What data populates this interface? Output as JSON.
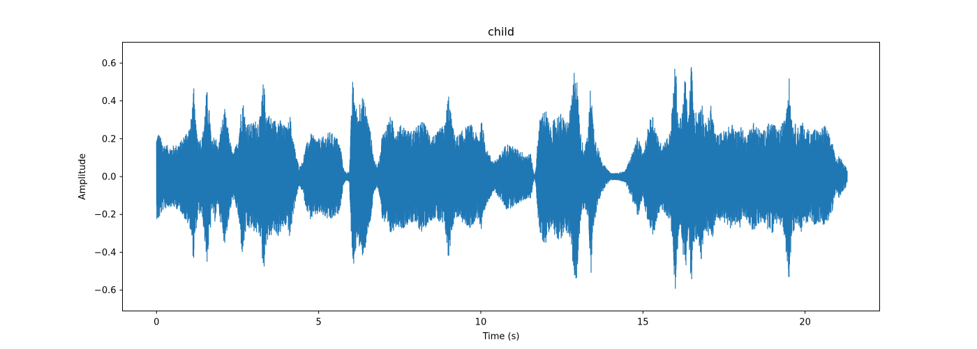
{
  "chart_data": {
    "type": "line",
    "title": "child",
    "xlabel": "Time (s)",
    "ylabel": "Amplitude",
    "xlim": [
      -1.05,
      22.3
    ],
    "ylim": [
      -0.71,
      0.71
    ],
    "xticks": [
      0,
      5,
      10,
      15,
      20
    ],
    "yticks": [
      -0.6,
      -0.4,
      -0.2,
      0.0,
      0.2,
      0.4,
      0.6
    ],
    "grid": false,
    "series": [
      {
        "color": "#1f77b4",
        "duration_s": 21.3,
        "envelope": {
          "time": [
            0.0,
            0.05,
            0.2,
            0.4,
            0.6,
            0.75,
            0.8,
            0.9,
            1.05,
            1.15,
            1.2,
            1.3,
            1.42,
            1.55,
            1.65,
            1.7,
            1.8,
            1.9,
            2.0,
            2.1,
            2.2,
            2.35,
            2.5,
            2.65,
            2.75,
            2.9,
            3.05,
            3.2,
            3.3,
            3.38,
            3.45,
            3.6,
            3.75,
            3.9,
            4.05,
            4.1,
            4.2,
            4.3,
            4.4,
            4.5,
            4.6,
            4.75,
            4.9,
            5.05,
            5.2,
            5.35,
            5.5,
            5.6,
            5.7,
            5.75,
            5.85,
            5.95,
            6.0,
            6.05,
            6.2,
            6.3,
            6.45,
            6.55,
            6.6,
            6.7,
            6.8,
            6.9,
            6.95,
            7.05,
            7.2,
            7.4,
            7.6,
            7.8,
            8.0,
            8.2,
            8.4,
            8.6,
            8.75,
            8.9,
            9.0,
            9.1,
            9.2,
            9.3,
            9.5,
            9.7,
            9.8,
            9.95,
            10.0,
            10.1,
            10.2,
            10.4,
            10.6,
            10.8,
            11.0,
            11.2,
            11.4,
            11.55,
            11.6,
            11.65,
            11.7,
            11.75,
            11.85,
            12.0,
            12.15,
            12.3,
            12.45,
            12.6,
            12.7,
            12.8,
            12.9,
            12.95,
            13.05,
            13.1,
            13.2,
            13.3,
            13.4,
            13.45,
            13.55,
            13.7,
            13.85,
            14.0,
            14.2,
            14.45,
            14.7,
            14.85,
            15.0,
            15.1,
            15.2,
            15.3,
            15.45,
            15.55,
            15.7,
            15.85,
            16.0,
            16.1,
            16.2,
            16.3,
            16.4,
            16.5,
            16.55,
            16.7,
            16.8,
            16.9,
            17.0,
            17.1,
            17.25,
            17.45,
            17.6,
            17.75,
            17.9,
            18.0,
            18.15,
            18.25,
            18.4,
            18.55,
            18.7,
            18.85,
            19.0,
            19.15,
            19.35,
            19.5,
            19.6,
            19.7,
            19.8,
            19.9,
            20.0,
            20.1,
            20.2,
            20.3,
            20.45,
            20.6,
            20.75,
            20.85,
            20.95,
            21.05,
            21.15,
            21.25,
            21.3
          ],
          "amplitude": [
            0.22,
            0.24,
            0.18,
            0.16,
            0.17,
            0.19,
            0.2,
            0.24,
            0.28,
            0.47,
            0.3,
            0.2,
            0.22,
            0.47,
            0.32,
            0.18,
            0.24,
            0.15,
            0.28,
            0.36,
            0.26,
            0.12,
            0.19,
            0.43,
            0.3,
            0.28,
            0.3,
            0.32,
            0.52,
            0.36,
            0.34,
            0.3,
            0.32,
            0.28,
            0.26,
            0.35,
            0.22,
            0.12,
            0.05,
            0.08,
            0.16,
            0.23,
            0.21,
            0.2,
            0.22,
            0.24,
            0.22,
            0.2,
            0.14,
            0.05,
            0.02,
            0.03,
            0.3,
            0.51,
            0.32,
            0.45,
            0.38,
            0.28,
            0.24,
            0.1,
            0.05,
            0.12,
            0.22,
            0.26,
            0.32,
            0.26,
            0.28,
            0.24,
            0.26,
            0.3,
            0.24,
            0.22,
            0.26,
            0.28,
            0.46,
            0.3,
            0.22,
            0.22,
            0.26,
            0.28,
            0.24,
            0.22,
            0.32,
            0.22,
            0.14,
            0.08,
            0.12,
            0.18,
            0.16,
            0.14,
            0.12,
            0.12,
            0.05,
            0.01,
            0.04,
            0.2,
            0.34,
            0.36,
            0.26,
            0.32,
            0.34,
            0.3,
            0.3,
            0.4,
            0.62,
            0.55,
            0.3,
            0.2,
            0.16,
            0.22,
            0.54,
            0.32,
            0.2,
            0.1,
            0.05,
            0.02,
            0.02,
            0.03,
            0.14,
            0.22,
            0.12,
            0.2,
            0.3,
            0.34,
            0.22,
            0.18,
            0.2,
            0.24,
            0.62,
            0.3,
            0.32,
            0.55,
            0.3,
            0.64,
            0.36,
            0.34,
            0.44,
            0.28,
            0.3,
            0.38,
            0.22,
            0.24,
            0.26,
            0.28,
            0.24,
            0.28,
            0.22,
            0.24,
            0.3,
            0.26,
            0.24,
            0.28,
            0.3,
            0.24,
            0.3,
            0.55,
            0.3,
            0.28,
            0.26,
            0.3,
            0.24,
            0.26,
            0.24,
            0.26,
            0.24,
            0.28,
            0.22,
            0.18,
            0.08,
            0.12,
            0.08,
            0.06,
            0.03,
            0.0
          ]
        }
      }
    ]
  }
}
